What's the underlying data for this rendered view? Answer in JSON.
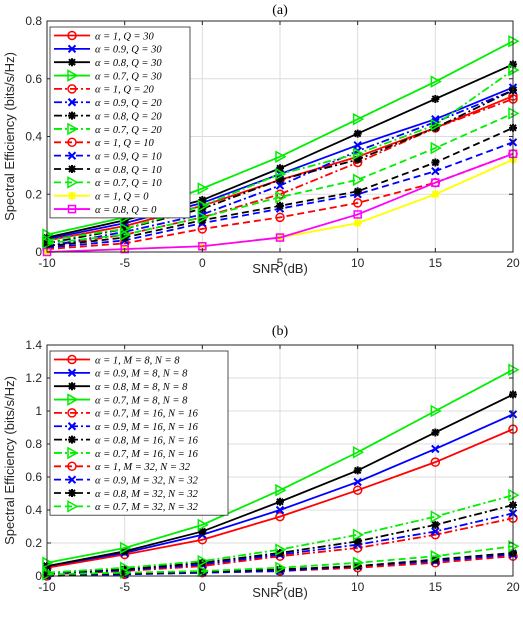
{
  "chart_data": [
    {
      "type": "line",
      "title": "(a)",
      "xlabel": "SNR (dB)",
      "ylabel": "Spectral Efficiency (bits/s/Hz)",
      "x": [
        -10,
        -5,
        0,
        5,
        10,
        15,
        20
      ],
      "xlim": [
        -10,
        20
      ],
      "ylim": [
        0,
        0.8
      ],
      "xticks": [
        -10,
        -5,
        0,
        5,
        10,
        15,
        20
      ],
      "yticks": [
        0,
        0.2,
        0.4,
        0.6,
        0.8
      ],
      "xtick_labels": [
        "-10",
        "-5",
        "0",
        "5",
        "10",
        "15",
        "20"
      ],
      "ytick_labels": [
        "0",
        "0.2",
        "0.4",
        "0.6",
        "0.8"
      ],
      "grid": true,
      "legend_position": "top-left",
      "series": [
        {
          "name": "α = 1, Q = 30",
          "color": "#ff0000",
          "style": "solid",
          "marker": "circle",
          "values": [
            0.04,
            0.09,
            0.16,
            0.25,
            0.33,
            0.43,
            0.54
          ]
        },
        {
          "name": "α = 0.9, Q = 30",
          "color": "#0000ff",
          "style": "solid",
          "marker": "x",
          "values": [
            0.045,
            0.1,
            0.17,
            0.27,
            0.37,
            0.46,
            0.57
          ]
        },
        {
          "name": "α = 0.8, Q = 30",
          "color": "#000000",
          "style": "solid",
          "marker": "star",
          "values": [
            0.05,
            0.11,
            0.18,
            0.29,
            0.41,
            0.53,
            0.65
          ]
        },
        {
          "name": "α = 0.7, Q = 30",
          "color": "#00ee00",
          "style": "solid",
          "marker": "triangle",
          "values": [
            0.06,
            0.12,
            0.22,
            0.33,
            0.46,
            0.59,
            0.73
          ]
        },
        {
          "name": "α = 1, Q = 20",
          "color": "#ff0000",
          "style": "dashdot",
          "marker": "circle",
          "values": [
            0.02,
            0.06,
            0.12,
            0.2,
            0.31,
            0.43,
            0.53
          ]
        },
        {
          "name": "α = 0.9, Q = 20",
          "color": "#0000ff",
          "style": "dashdot",
          "marker": "x",
          "values": [
            0.02,
            0.07,
            0.13,
            0.23,
            0.35,
            0.45,
            0.56
          ]
        },
        {
          "name": "α = 0.8, Q = 20",
          "color": "#000000",
          "style": "dashdot",
          "marker": "star",
          "values": [
            0.03,
            0.08,
            0.15,
            0.25,
            0.32,
            0.43,
            0.56
          ]
        },
        {
          "name": "α = 0.7, Q = 20",
          "color": "#00ee00",
          "style": "dashdot",
          "marker": "triangle",
          "values": [
            0.04,
            0.08,
            0.16,
            0.27,
            0.34,
            0.44,
            0.63
          ]
        },
        {
          "name": "α = 1, Q = 10",
          "color": "#ff0000",
          "style": "dashed",
          "marker": "circle",
          "values": [
            0.01,
            0.03,
            0.08,
            0.12,
            0.17,
            0.24,
            0.34
          ]
        },
        {
          "name": "α = 0.9, Q = 10",
          "color": "#0000ff",
          "style": "dashed",
          "marker": "x",
          "values": [
            0.015,
            0.04,
            0.1,
            0.15,
            0.2,
            0.28,
            0.38
          ]
        },
        {
          "name": "α = 0.8, Q = 10",
          "color": "#000000",
          "style": "dashed",
          "marker": "star",
          "values": [
            0.02,
            0.05,
            0.11,
            0.16,
            0.21,
            0.31,
            0.43
          ]
        },
        {
          "name": "α = 0.7, Q = 10",
          "color": "#00ee00",
          "style": "dashed",
          "marker": "triangle",
          "values": [
            0.03,
            0.06,
            0.12,
            0.19,
            0.25,
            0.36,
            0.48
          ]
        },
        {
          "name": "α = 1, Q = 0",
          "color": "#ffff00",
          "style": "solid",
          "marker": "star",
          "values": [
            0.0,
            0.01,
            0.02,
            0.05,
            0.1,
            0.2,
            0.32
          ]
        },
        {
          "name": "α = 0.8, Q = 0",
          "color": "#ff00ff",
          "style": "solid",
          "marker": "square",
          "values": [
            0.0,
            0.01,
            0.02,
            0.05,
            0.13,
            0.24,
            0.34
          ]
        }
      ]
    },
    {
      "type": "line",
      "title": "(b)",
      "xlabel": "SNR (dB)",
      "ylabel": "Spectral Efficiency (bits/s/Hz)",
      "x": [
        -10,
        -5,
        0,
        5,
        10,
        15,
        20
      ],
      "xlim": [
        -10,
        20
      ],
      "ylim": [
        0,
        1.4
      ],
      "xticks": [
        -10,
        -5,
        0,
        5,
        10,
        15,
        20
      ],
      "yticks": [
        0,
        0.2,
        0.4,
        0.6,
        0.8,
        1,
        1.2,
        1.4
      ],
      "xtick_labels": [
        "-10",
        "-5",
        "0",
        "5",
        "10",
        "15",
        "20"
      ],
      "ytick_labels": [
        "0",
        "0.2",
        "0.4",
        "0.6",
        "0.8",
        "1",
        "1.2",
        "1.4"
      ],
      "grid": true,
      "legend_position": "top-left",
      "series": [
        {
          "name": "α = 1, M = 8, N = 8",
          "color": "#ff0000",
          "style": "solid",
          "marker": "circle",
          "values": [
            0.05,
            0.13,
            0.22,
            0.36,
            0.52,
            0.69,
            0.89
          ]
        },
        {
          "name": "α = 0.9, M = 8, N = 8",
          "color": "#0000ff",
          "style": "solid",
          "marker": "x",
          "values": [
            0.06,
            0.14,
            0.25,
            0.4,
            0.57,
            0.77,
            0.98
          ]
        },
        {
          "name": "α = 0.8, M = 8, N = 8",
          "color": "#000000",
          "style": "solid",
          "marker": "star",
          "values": [
            0.06,
            0.15,
            0.27,
            0.45,
            0.64,
            0.87,
            1.1
          ]
        },
        {
          "name": "α = 0.7, M = 8, N = 8",
          "color": "#00ee00",
          "style": "solid",
          "marker": "triangle",
          "values": [
            0.08,
            0.17,
            0.31,
            0.52,
            0.75,
            1.0,
            1.25
          ]
        },
        {
          "name": "α = 0.7, M = 16, N = 16",
          "color": "#ff0000",
          "style": "dashdot",
          "marker": "circle",
          "values": [
            0.01,
            0.03,
            0.06,
            0.12,
            0.17,
            0.25,
            0.35
          ]
        },
        {
          "name": "α = 0.9, M = 16, N = 16",
          "color": "#0000ff",
          "style": "dashdot",
          "marker": "x",
          "values": [
            0.015,
            0.035,
            0.07,
            0.13,
            0.19,
            0.27,
            0.38
          ]
        },
        {
          "name": "α = 0.8, M = 16, N = 16",
          "color": "#000000",
          "style": "dashdot",
          "marker": "star",
          "values": [
            0.02,
            0.04,
            0.08,
            0.14,
            0.21,
            0.31,
            0.43
          ]
        },
        {
          "name": "α = 0.7, M = 16, N = 16",
          "color": "#00ee00",
          "style": "dashdot",
          "marker": "triangle",
          "values": [
            0.02,
            0.05,
            0.09,
            0.16,
            0.25,
            0.36,
            0.49
          ]
        },
        {
          "name": "α = 1, M = 32, N = 32",
          "color": "#ff0000",
          "style": "dashed",
          "marker": "circle",
          "values": [
            0.0,
            0.01,
            0.02,
            0.03,
            0.05,
            0.08,
            0.12
          ]
        },
        {
          "name": "α = 0.9, M = 32, N = 32",
          "color": "#0000ff",
          "style": "dashed",
          "marker": "x",
          "values": [
            0.0,
            0.01,
            0.02,
            0.03,
            0.06,
            0.09,
            0.13
          ]
        },
        {
          "name": "α = 0.8, M = 32, N = 32",
          "color": "#000000",
          "style": "dashed",
          "marker": "star",
          "values": [
            0.005,
            0.015,
            0.025,
            0.04,
            0.06,
            0.1,
            0.14
          ]
        },
        {
          "name": "α = 0.7, M = 32, N = 32",
          "color": "#00ee00",
          "style": "dashed",
          "marker": "triangle",
          "values": [
            0.01,
            0.02,
            0.03,
            0.05,
            0.08,
            0.12,
            0.18
          ]
        }
      ]
    }
  ]
}
